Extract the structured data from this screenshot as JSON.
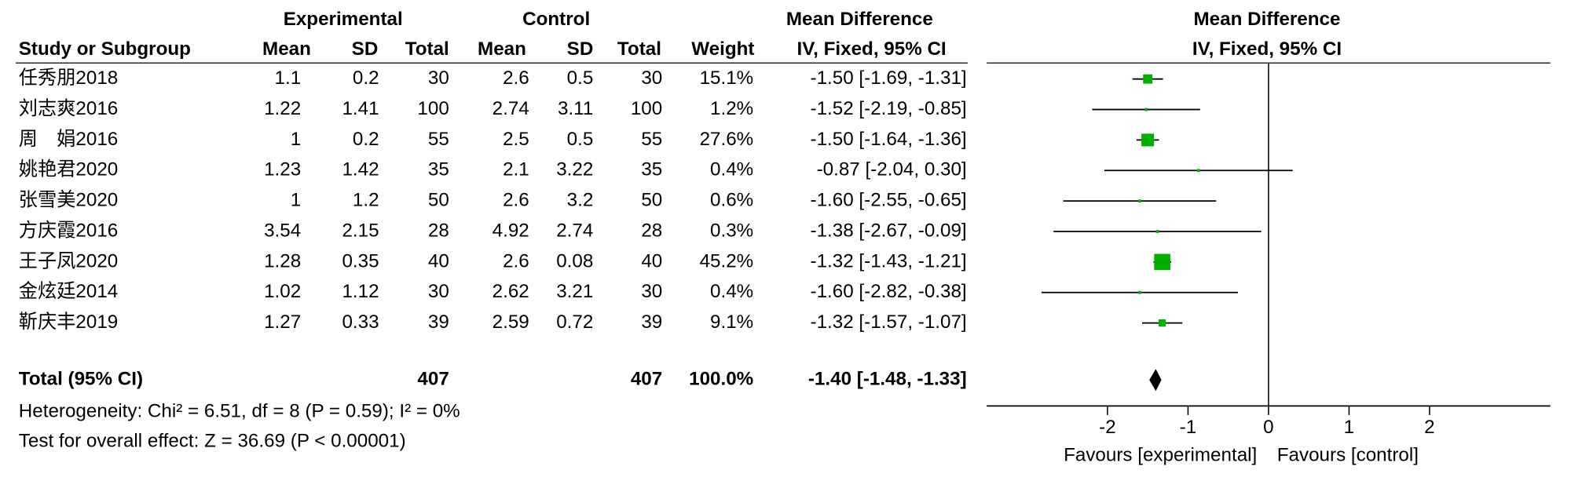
{
  "chart_data": {
    "type": "forest",
    "group_headers": [
      "Experimental",
      "Control",
      "Mean Difference",
      "Mean Difference"
    ],
    "columns": [
      "Study or Subgroup",
      "Mean",
      "SD",
      "Total",
      "Mean",
      "SD",
      "Total",
      "Weight",
      "IV, Fixed, 95% CI",
      "IV, Fixed, 95% CI"
    ],
    "rows": [
      [
        "任秀朋2018",
        "1.1",
        "0.2",
        "30",
        "2.6",
        "0.5",
        "30"
      ],
      [
        "刘志爽2016",
        "1.22",
        "1.41",
        "100",
        "2.74",
        "3.11",
        "100"
      ],
      [
        "周　娟2016",
        "1",
        "0.2",
        "55",
        "2.5",
        "0.5",
        "55"
      ],
      [
        "姚艳君2020",
        "1.23",
        "1.42",
        "35",
        "2.1",
        "3.22",
        "35"
      ],
      [
        "张雪美2020",
        "1",
        "1.2",
        "50",
        "2.6",
        "3.2",
        "50"
      ],
      [
        "方庆霞2016",
        "3.54",
        "2.15",
        "28",
        "4.92",
        "2.74",
        "28"
      ],
      [
        "王子凤2020",
        "1.28",
        "0.35",
        "40",
        "2.6",
        "0.08",
        "40"
      ],
      [
        "金炫廷2014",
        "1.02",
        "1.12",
        "30",
        "2.62",
        "3.21",
        "30"
      ],
      [
        "靳庆丰2019",
        "1.27",
        "0.33",
        "39",
        "2.59",
        "0.72",
        "39"
      ]
    ],
    "weights": [
      15.1,
      1.2,
      27.6,
      0.4,
      0.6,
      0.3,
      45.2,
      0.4,
      9.1
    ],
    "weight_labels": [
      "15.1%",
      "1.2%",
      "27.6%",
      "0.4%",
      "0.6%",
      "0.3%",
      "45.2%",
      "0.4%",
      "9.1%"
    ],
    "values": [
      -1.5,
      -1.52,
      -1.5,
      -0.87,
      -1.6,
      -1.38,
      -1.32,
      -1.6,
      -1.32
    ],
    "ci_lower": [
      -1.69,
      -2.19,
      -1.64,
      -2.04,
      -2.55,
      -2.67,
      -1.43,
      -2.82,
      -1.57
    ],
    "ci_upper": [
      -1.31,
      -0.85,
      -1.36,
      0.3,
      -0.65,
      -0.09,
      -1.21,
      -0.38,
      -1.07
    ],
    "value_labels": [
      "-1.50 [-1.69, -1.31]",
      "-1.52 [-2.19, -0.85]",
      "-1.50 [-1.64, -1.36]",
      "-0.87 [-2.04, 0.30]",
      "-1.60 [-2.55, -0.65]",
      "-1.38 [-2.67, -0.09]",
      "-1.32 [-1.43, -1.21]",
      "-1.60 [-2.82, -0.38]",
      "-1.32 [-1.57, -1.07]"
    ],
    "total": {
      "label": "Total (95% CI)",
      "experimental_total": "407",
      "control_total": "407",
      "weight": 100,
      "weight_label": "100.0%",
      "value": -1.4,
      "ci_lower": -1.48,
      "ci_upper": -1.33,
      "value_label": "-1.40 [-1.48, -1.33]"
    },
    "heterogeneity": "Heterogeneity: Chi² = 6.51, df = 8 (P = 0.59); I² = 0%",
    "overall_effect": "Test for overall effect: Z = 36.69 (P < 0.00001)",
    "xlim": [
      -3.5,
      3.5
    ],
    "xticks": [
      -2,
      -1,
      0,
      1,
      2
    ],
    "favours_left": "Favours [experimental]",
    "favours_right": "Favours [control]",
    "color": "#00b000"
  }
}
